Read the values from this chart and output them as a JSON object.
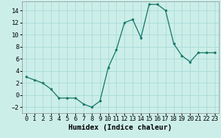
{
  "x": [
    0,
    1,
    2,
    3,
    4,
    5,
    6,
    7,
    8,
    9,
    10,
    11,
    12,
    13,
    14,
    15,
    16,
    17,
    18,
    19,
    20,
    21,
    22,
    23
  ],
  "y": [
    3,
    2.5,
    2,
    1,
    -0.5,
    -0.5,
    -0.5,
    -1.5,
    -2,
    -1,
    4.5,
    7.5,
    12,
    12.5,
    9.5,
    15,
    15,
    14,
    8.5,
    6.5,
    5.5,
    7,
    7,
    7
  ],
  "line_color": "#1a7a6a",
  "marker": "s",
  "marker_size": 2,
  "bg_color": "#cceee8",
  "grid_color": "#aaddda",
  "xlabel": "Humidex (Indice chaleur)",
  "xlim": [
    -0.5,
    23.5
  ],
  "ylim": [
    -3,
    15.5
  ],
  "yticks": [
    -2,
    0,
    2,
    4,
    6,
    8,
    10,
    12,
    14
  ],
  "xtick_labels": [
    "0",
    "1",
    "2",
    "3",
    "4",
    "5",
    "6",
    "7",
    "8",
    "9",
    "10",
    "11",
    "12",
    "13",
    "14",
    "15",
    "16",
    "17",
    "18",
    "19",
    "20",
    "21",
    "22",
    "23"
  ],
  "xlabel_fontsize": 7.5,
  "tick_fontsize": 6.5
}
